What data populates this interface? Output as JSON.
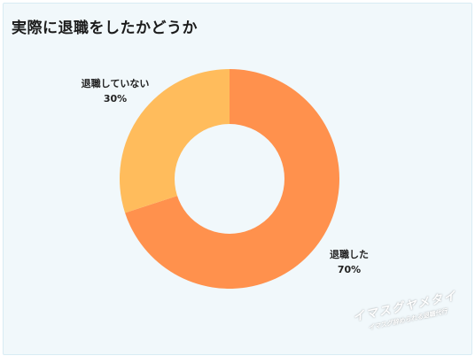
{
  "title": "実際に退職をしたかどうか",
  "chart_data": {
    "type": "pie",
    "donut": true,
    "slices": [
      {
        "label": "退職した",
        "value": 70,
        "value_label": "70%",
        "color": "#ff914d"
      },
      {
        "label": "退職していない",
        "value": 30,
        "value_label": "30%",
        "color": "#ffbc5c"
      }
    ]
  },
  "watermark": {
    "main": "イマスグヤメタイ",
    "sub": "イマスグ辞められる退職代行"
  },
  "colors": {
    "background": "#f1f8fb",
    "border": "#d8ecf4",
    "primary_slice": "#ff914d",
    "secondary_slice": "#ffbc5c"
  }
}
